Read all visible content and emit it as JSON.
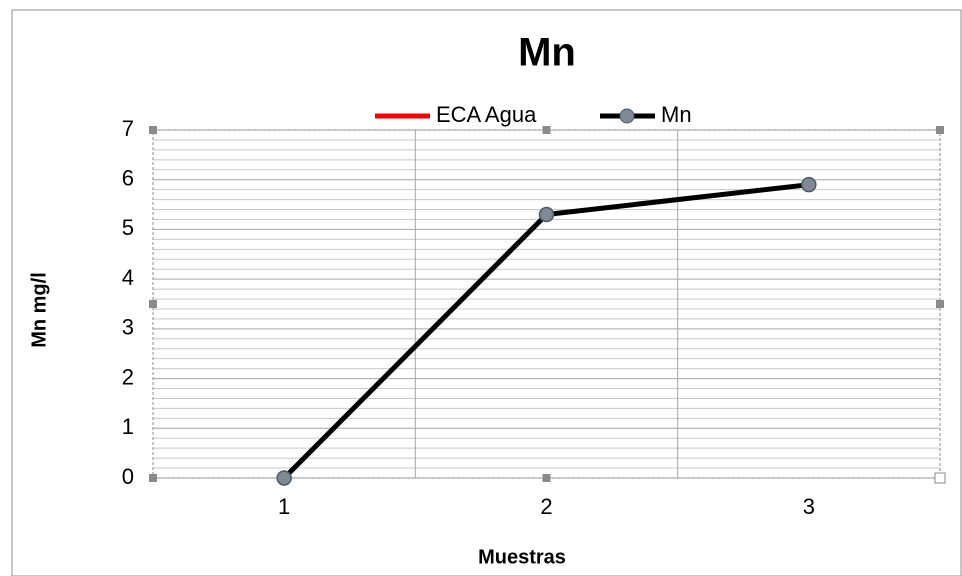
{
  "chart_data": {
    "type": "line",
    "title": "Mn",
    "categories": [
      "1",
      "2",
      "3"
    ],
    "series": [
      {
        "name": "ECA Agua",
        "color": "#ff0000",
        "values": [
          null,
          null,
          null
        ]
      },
      {
        "name": "Mn",
        "color": "#000000",
        "values": [
          0,
          5.3,
          5.9
        ]
      }
    ],
    "xlabel": "Muestras",
    "ylabel": "Mn mg/l",
    "ylim": [
      0,
      7
    ],
    "yticks": [
      0,
      1,
      2,
      3,
      4,
      5,
      6,
      7
    ],
    "grid": true,
    "legend": "top"
  }
}
